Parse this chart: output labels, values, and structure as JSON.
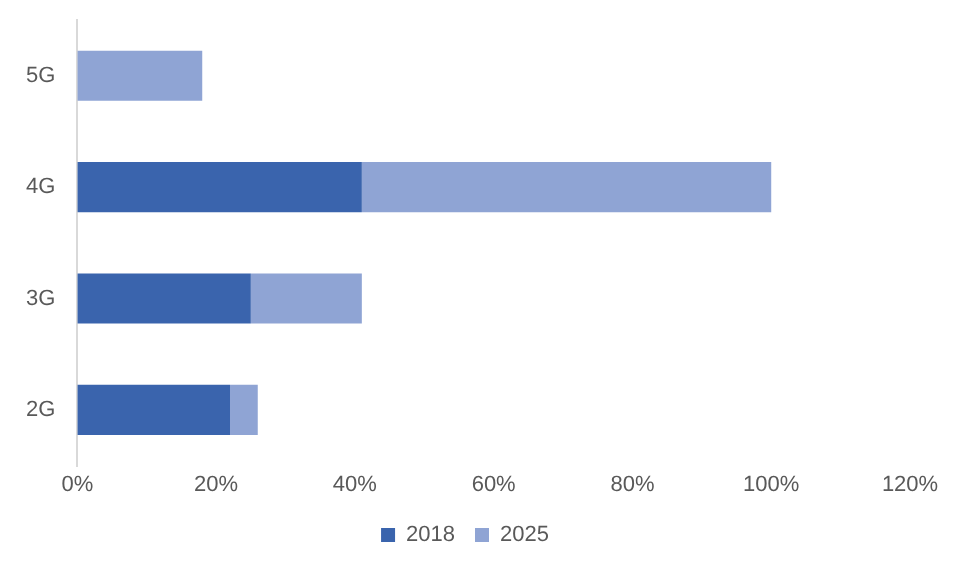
{
  "chart_data": {
    "type": "bar",
    "orientation": "horizontal",
    "stacked": true,
    "categories": [
      "5G",
      "4G",
      "3G",
      "2G"
    ],
    "series": [
      {
        "name": "2018",
        "color": "#3a64ad",
        "values": [
          0,
          41,
          25,
          22
        ]
      },
      {
        "name": "2025",
        "color": "#8fa4d4",
        "values": [
          18,
          59,
          16,
          4
        ]
      }
    ],
    "xlim": [
      0,
      120
    ],
    "xticks": [
      {
        "value": 0,
        "label": "0%"
      },
      {
        "value": 20,
        "label": "20%"
      },
      {
        "value": 40,
        "label": "40%"
      },
      {
        "value": 60,
        "label": "60%"
      },
      {
        "value": 80,
        "label": "80%"
      },
      {
        "value": 100,
        "label": "100%"
      },
      {
        "value": 120,
        "label": "120%"
      }
    ],
    "grid": false,
    "legend": "bottom"
  }
}
